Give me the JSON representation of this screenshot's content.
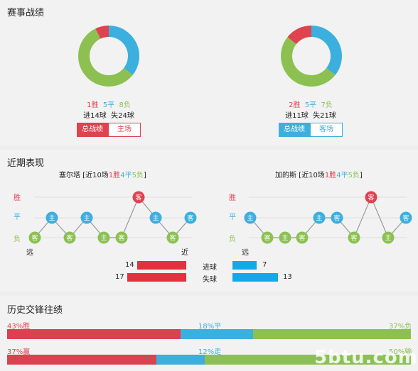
{
  "colors": {
    "win": "#e0424f",
    "draw": "#3bb0de",
    "loss": "#8cc152",
    "bar_red": "#e3323f",
    "bar_blue": "#13a9e6"
  },
  "record": {
    "title": "赛事战绩",
    "home": {
      "win": "1胜",
      "draw": "5平",
      "loss": "8负",
      "win_n": 1,
      "draw_n": 5,
      "loss_n": 8,
      "goals_for": "进14球",
      "goals_against": "失24球",
      "btn_total": "总战绩",
      "btn_venue": "主场"
    },
    "away": {
      "win": "2胜",
      "draw": "5平",
      "loss": "7负",
      "win_n": 2,
      "draw_n": 5,
      "loss_n": 7,
      "goals_for": "进11球",
      "goals_against": "失21球",
      "btn_total": "总战绩",
      "btn_venue": "客场"
    }
  },
  "recent": {
    "title": "近期表现",
    "axis": {
      "win": "胜",
      "draw": "平",
      "loss": "负"
    },
    "far": "远",
    "near": "近",
    "home": {
      "team": "塞尔塔",
      "pre": " [近10场",
      "w": "1胜",
      "d": "4平",
      "l": "5负",
      "post": "]",
      "games": [
        {
          "r": "L",
          "v": "客"
        },
        {
          "r": "D",
          "v": "主"
        },
        {
          "r": "L",
          "v": "客"
        },
        {
          "r": "D",
          "v": "主"
        },
        {
          "r": "L",
          "v": "主"
        },
        {
          "r": "L",
          "v": "客"
        },
        {
          "r": "W",
          "v": "客"
        },
        {
          "r": "D",
          "v": "主"
        },
        {
          "r": "L",
          "v": "客"
        },
        {
          "r": "D",
          "v": "客"
        }
      ]
    },
    "away": {
      "team": "加的斯",
      "pre": " [近10场",
      "w": "1胜",
      "d": "4平",
      "l": "5负",
      "post": "]",
      "games": [
        {
          "r": "D",
          "v": "主"
        },
        {
          "r": "L",
          "v": "客"
        },
        {
          "r": "L",
          "v": "主"
        },
        {
          "r": "L",
          "v": "客"
        },
        {
          "r": "D",
          "v": "主"
        },
        {
          "r": "D",
          "v": "客"
        },
        {
          "r": "L",
          "v": "客"
        },
        {
          "r": "W",
          "v": "客"
        },
        {
          "r": "L",
          "v": "主"
        },
        {
          "r": "D",
          "v": "客"
        }
      ]
    },
    "goals": {
      "scored_label": "进球",
      "conceded_label": "失球",
      "home_scored": 14,
      "home_conceded": 17,
      "away_scored": 7,
      "away_conceded": 13
    }
  },
  "history": {
    "title": "历史交锋往绩",
    "row1": {
      "left": "43%胜",
      "mid": "18%平",
      "right": "37%负",
      "a": 43,
      "b": 18,
      "c": 37
    },
    "row2": {
      "left": "37%赢",
      "mid": "12%走",
      "right": "50%输",
      "a": 37,
      "b": 12,
      "c": 50
    }
  },
  "watermark": "5btu.com"
}
